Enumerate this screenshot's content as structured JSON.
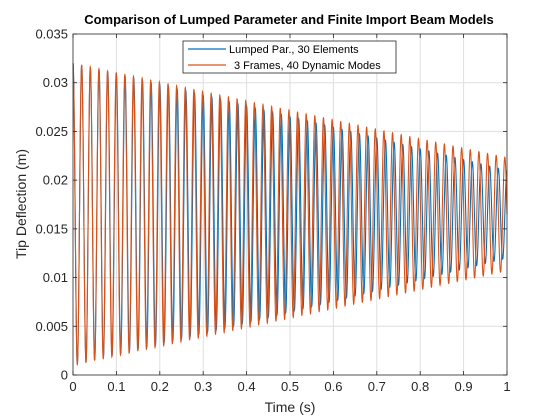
{
  "chart_data": {
    "type": "line",
    "title": "Comparison of Lumped Parameter and Finite Import Beam Models",
    "xlabel": "Time (s)",
    "ylabel": "Tip Deflection (m)",
    "xlim": [
      0,
      1
    ],
    "ylim": [
      0,
      0.035
    ],
    "xticks": [
      0,
      0.1,
      0.2,
      0.3,
      0.4,
      0.5,
      0.6,
      0.7,
      0.8,
      0.9,
      1
    ],
    "xtick_labels": [
      "0",
      "0.1",
      "0.2",
      "0.3",
      "0.4",
      "0.5",
      "0.6",
      "0.7",
      "0.8",
      "0.9",
      "1"
    ],
    "yticks": [
      0,
      0.005,
      0.01,
      0.015,
      0.02,
      0.025,
      0.03,
      0.035
    ],
    "ytick_labels": [
      "0",
      "0.005",
      "0.01",
      "0.015",
      "0.02",
      "0.025",
      "0.03",
      "0.035"
    ],
    "grid": true,
    "legend_location": "top-center",
    "series": [
      {
        "name": "Lumped Par., 30 Elements",
        "color": "#0072BD",
        "mean": 0.0165,
        "amplitude_start": 0.0155,
        "amplitude_end": 0.0045,
        "frequency_hz": 50,
        "phase_offset": 0.0
      },
      {
        "name": "3 Frames, 40 Dynamic Modes",
        "color": "#D95319",
        "mean": 0.0165,
        "amplitude_start": 0.0155,
        "amplitude_end": 0.0058,
        "frequency_hz": 50.25,
        "phase_offset": 0.0
      }
    ]
  }
}
